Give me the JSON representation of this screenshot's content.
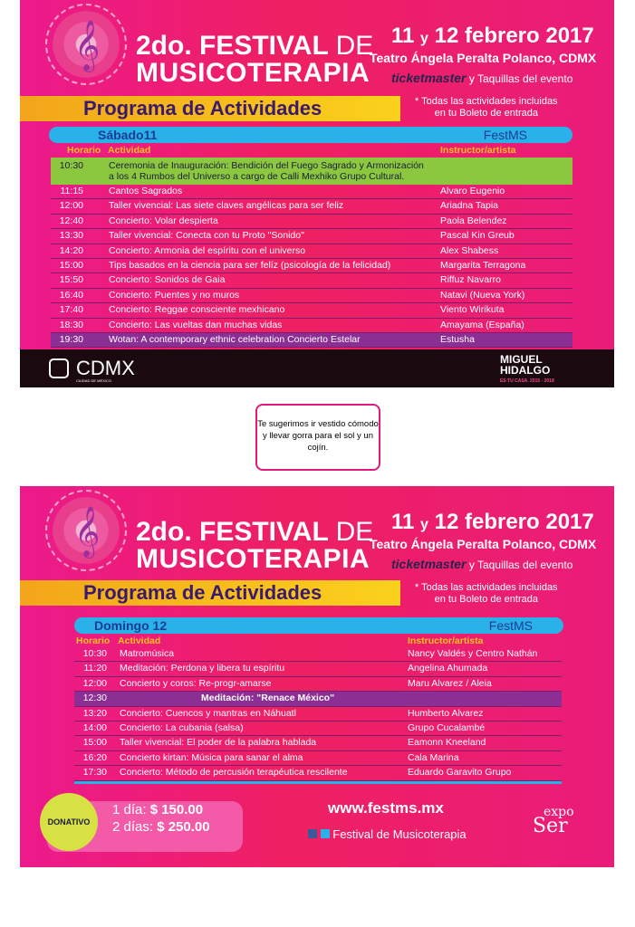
{
  "header": {
    "title_line1_a": "2do. FESTIVAL",
    "title_line1_b": "DE",
    "title_line2": "MUSICOTERAPIA",
    "date_a": "11",
    "date_y": "y",
    "date_b": "12 febrero 2017",
    "venue": "Teatro Ángela Peralta Polanco, CDMX",
    "ticket_brand": "ticketmaster",
    "ticket_rest": "y Taquillas del evento",
    "program": "Programa de Actividades",
    "note_line1": "* Todas las actividades incluidas",
    "note_line2": "en tu Boleto de entrada"
  },
  "columns": {
    "time": "Horario",
    "activity": "Actividad",
    "artist": "Instructor/artista",
    "brand": "FestMS"
  },
  "saturday": {
    "day": "Sábado11",
    "rows": [
      {
        "time": "10:30",
        "activity": "Ceremonia de Inauguración: Bendición del Fuego Sagrado y Armonización",
        "activity2": "a los 4 Rumbos del Universo a cargo de Calli Mexhiko Grupo Cultural.",
        "artist": "",
        "style": "green"
      },
      {
        "time": "11:15",
        "activity": "Cantos Sagrados",
        "artist": "Alvaro Eugenio"
      },
      {
        "time": "12:00",
        "activity": "Taller vivencial: Las siete claves angélicas para ser feliz",
        "artist": "Ariadna Tapia"
      },
      {
        "time": "12:40",
        "activity": "Concierto: Volar despierta",
        "artist": "Paola Belendez"
      },
      {
        "time": "13:30",
        "activity": "Taller vivencial: Conecta con tu Proto \"Sonido\"",
        "artist": "Pascal Kin Greub"
      },
      {
        "time": "14:20",
        "activity": "Concierto: Armonia del espíritu con el universo",
        "artist": "Alex Shabess"
      },
      {
        "time": "15:00",
        "activity": "Tips basados en la ciencia para ser felíz (psicología de la felicidad)",
        "artist": "Margarita Terragona"
      },
      {
        "time": "15:50",
        "activity": "Concierto: Sonidos de Gaia",
        "artist": "Riffuz Navarro"
      },
      {
        "time": "16:40",
        "activity": "Concierto: Puentes y no muros",
        "artist": "Natavi (Nueva York)"
      },
      {
        "time": "17:40",
        "activity": "Concierto: Reggae consciente mexhicano",
        "artist": "Viento Wirikuta"
      },
      {
        "time": "18:30",
        "activity": "Concierto: Las vueltas dan muchas vidas",
        "artist": "Amayama (España)"
      },
      {
        "time": "19:30",
        "activity": "Wotan: A contemporary ethnic celebration   Concierto Estelar",
        "artist": "Estusha",
        "style": "purple"
      }
    ]
  },
  "footer1": {
    "cdmx": "CDMX",
    "cdmx_sub": "CIUDAD DE MÉXICO",
    "mh1": "MIGUEL",
    "mh2": "HIDALGO",
    "mh_sub": "ES TU CASA. 2015 - 2018"
  },
  "tip": "Te sugerimos ir vestido cómodo y llevar gorra para el sol y un cojín.",
  "sunday": {
    "day": "Domingo 12",
    "rows": [
      {
        "time": "10:30",
        "activity": "Matromúsica",
        "artist": "Nancy Valdés y Centro Nathán"
      },
      {
        "time": "11:20",
        "activity": "Meditación: Perdona y libera tu espíritu",
        "artist": "Angelina Ahumada"
      },
      {
        "time": "12:00",
        "activity": "Concierto y coros: Re-progr-amarse",
        "artist": "Maru Alvarez / Aleia"
      },
      {
        "time": "12:30",
        "activity": "Meditación:  \"Renace México\"",
        "artist": "",
        "style": "purple-center"
      },
      {
        "time": "13:20",
        "activity": "Concierto: Cuencos y mantras en Náhuatl",
        "artist": "Humberto Alvarez"
      },
      {
        "time": "14:00",
        "activity": "Concierto:  La cubania (salsa)",
        "artist": "Grupo Cucalambé"
      },
      {
        "time": "15:00",
        "activity": "Taller vivencial: El poder de la palabra hablada",
        "artist": "Eamonn Kneeland"
      },
      {
        "time": "16:20",
        "activity": "Concierto kirtan: Música para sanar el alma",
        "artist": "Cala Marina"
      },
      {
        "time": "17:30",
        "activity": "Concierto: Método de percusión terapéutica rescilente",
        "artist": "Eduardo Garavito Grupo"
      }
    ]
  },
  "footer2": {
    "donativo": "DONATIVO",
    "price1_label": "1 día:",
    "price1": "$ 150.00",
    "price2_label": "2 días:",
    "price2": "$ 250.00",
    "website": "www.festms.mx",
    "social": "Festival de Musicoterapia",
    "expo1": "expo",
    "expo2": "Ser"
  },
  "colors": {
    "pink": "#ec1a8c",
    "blue": "#2bb1ea",
    "green": "#8cc83f",
    "purple": "#8c2f94",
    "yellow": "#f9c41a"
  }
}
